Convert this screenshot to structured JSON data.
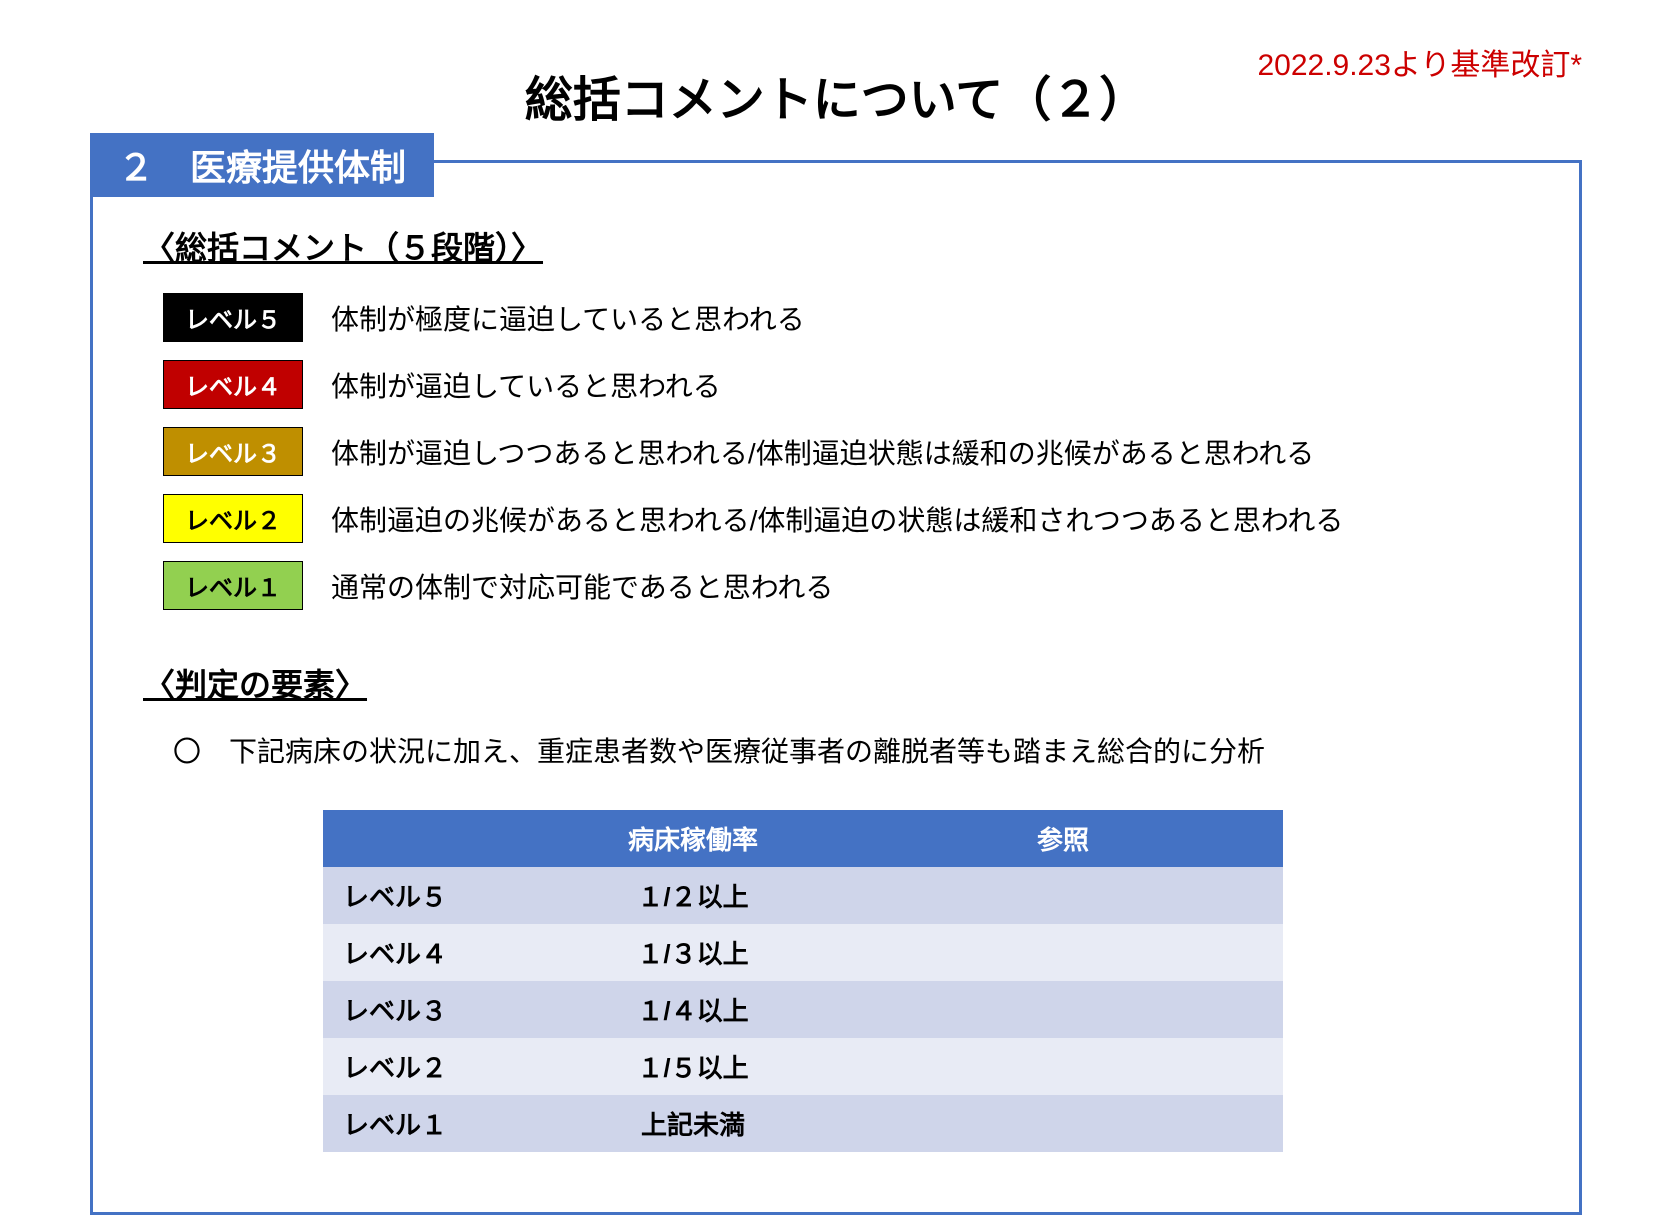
{
  "header": {
    "title": "総括コメントについて（２）",
    "revision_note": "2022.9.23より基準改訂*",
    "revision_color": "#cc0000"
  },
  "section": {
    "tab_label": "２　医療提供体制",
    "tab_bg": "#4472c4",
    "tab_text_color": "#ffffff",
    "border_color": "#4472c4"
  },
  "levels_section": {
    "heading": "〈総括コメント（５段階）〉",
    "levels": [
      {
        "badge": "レベル５",
        "bg": "#000000",
        "text_color": "#ffffff",
        "desc": "体制が極度に逼迫していると思われる"
      },
      {
        "badge": "レベル４",
        "bg": "#c00000",
        "text_color": "#ffffff",
        "desc": "体制が逼迫していると思われる"
      },
      {
        "badge": "レベル３",
        "bg": "#bf8f00",
        "text_color": "#ffffff",
        "desc": "体制が逼迫しつつあると思われる/体制逼迫状態は緩和の兆候があると思われる"
      },
      {
        "badge": "レベル２",
        "bg": "#ffff00",
        "text_color": "#000000",
        "desc": "体制逼迫の兆候があると思われる/体制逼迫の状態は緩和されつつあると思われる"
      },
      {
        "badge": "レベル１",
        "bg": "#92d050",
        "text_color": "#000000",
        "desc": "通常の体制で対応可能であると思われる"
      }
    ]
  },
  "criteria_section": {
    "heading": "〈判定の要素〉",
    "note": "〇　下記病床の状況に加え、重症患者数や医療従事者の離脱者等も踏まえ総合的に分析",
    "table": {
      "header_bg": "#4472c4",
      "header_text_color": "#ffffff",
      "row_a_bg": "#cfd5ea",
      "row_b_bg": "#e8ebf5",
      "columns": [
        "",
        "病床稼働率",
        "参照"
      ],
      "rows": [
        {
          "level": "レベル５",
          "rate": "１/２以上",
          "ref": ""
        },
        {
          "level": "レベル４",
          "rate": "１/３以上",
          "ref": ""
        },
        {
          "level": "レベル３",
          "rate": "１/４以上",
          "ref": ""
        },
        {
          "level": "レベル２",
          "rate": "１/５以上",
          "ref": ""
        },
        {
          "level": "レベル１",
          "rate": "上記未満",
          "ref": ""
        }
      ]
    }
  }
}
